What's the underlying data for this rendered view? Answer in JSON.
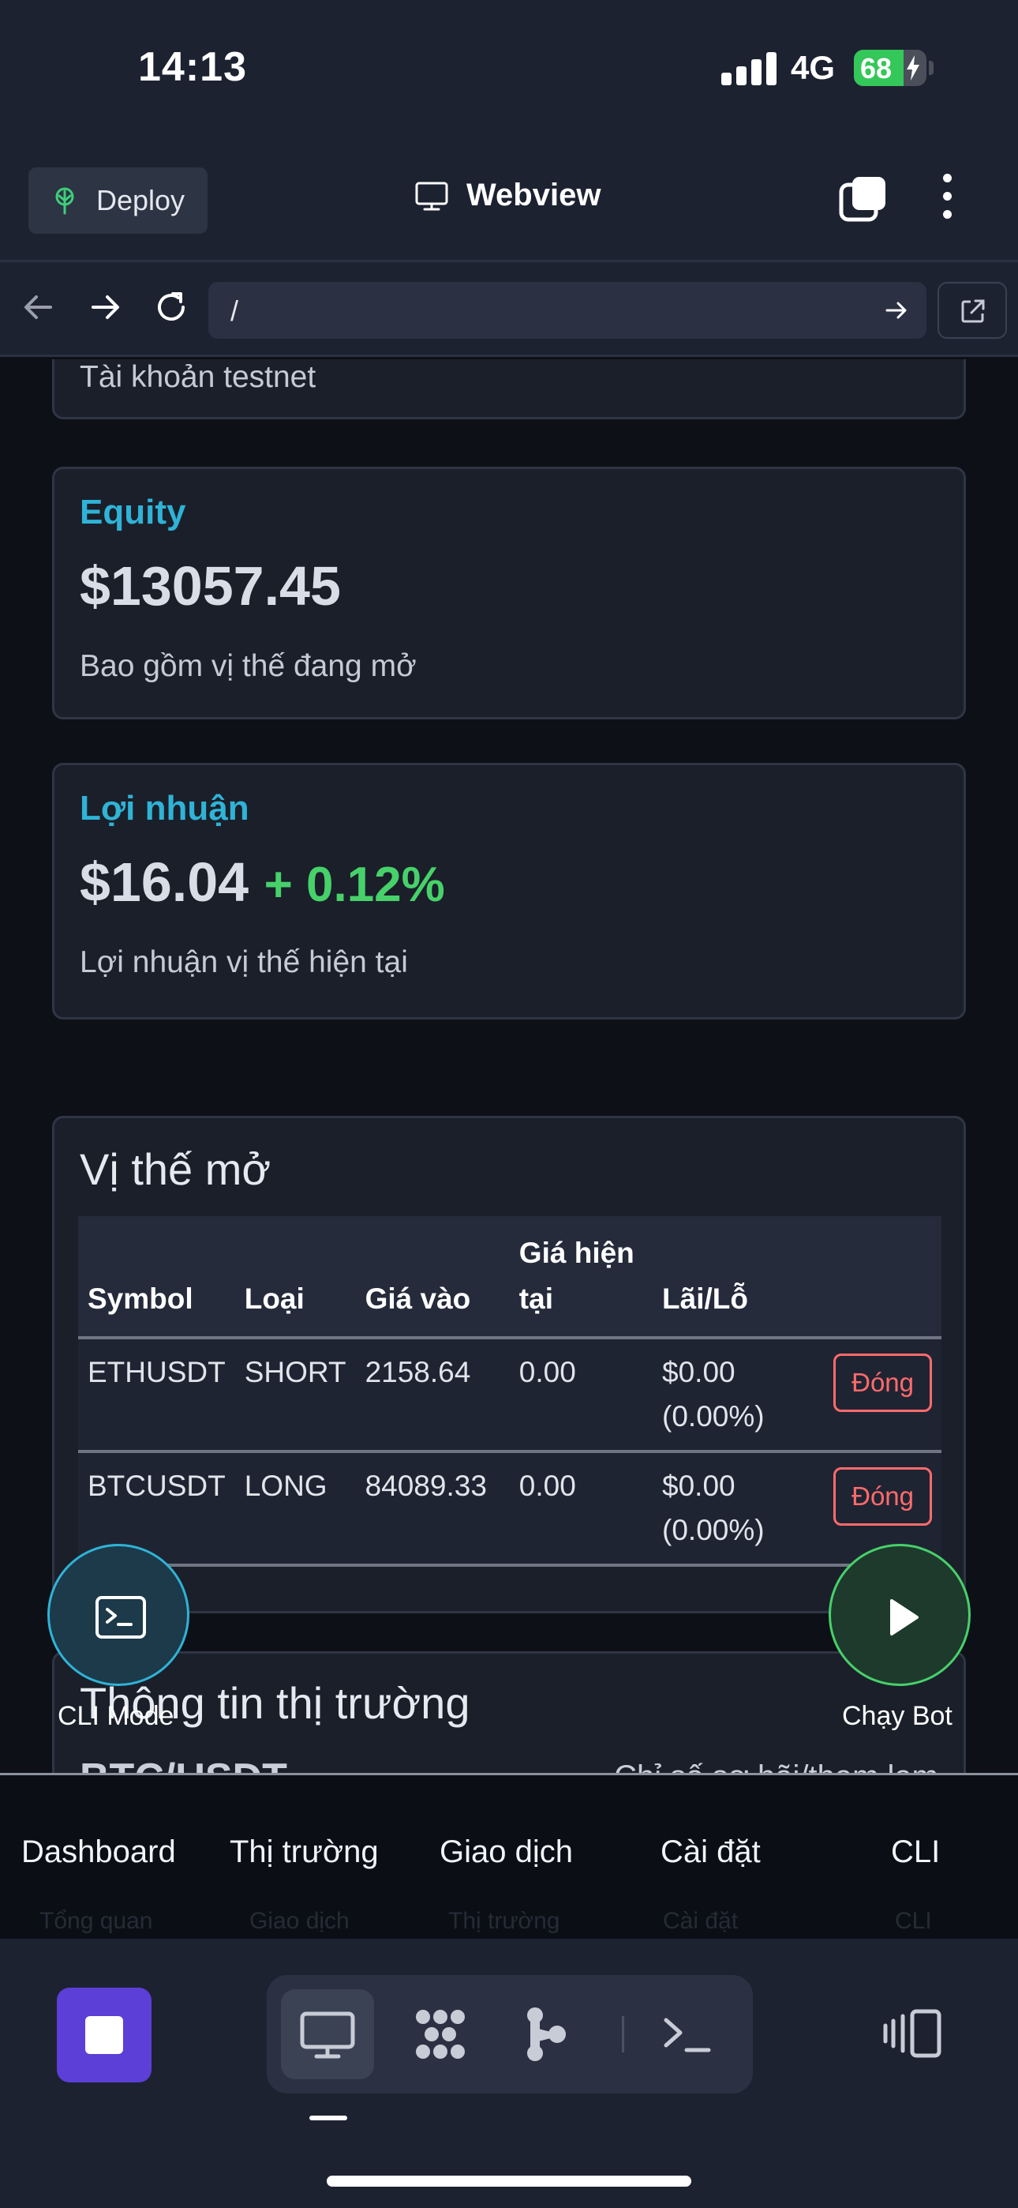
{
  "status_bar": {
    "time": "14:13",
    "network": "4G",
    "battery": "68",
    "battery_level": 0.68
  },
  "header": {
    "deploy_label": "Deploy",
    "title": "Webview"
  },
  "url_bar": {
    "url": "/"
  },
  "cards": {
    "account": {
      "subtitle": "Tài khoản testnet"
    },
    "equity": {
      "label": "Equity",
      "value": "$13057.45",
      "subtitle": "Bao gồm vị thế đang mở"
    },
    "profit": {
      "label": "Lợi nhuận",
      "value": "$16.04",
      "percent": "+ 0.12%",
      "subtitle": "Lợi nhuận vị thế hiện tại"
    }
  },
  "positions": {
    "title": "Vị thế mở",
    "columns": [
      "Symbol",
      "Loại",
      "Giá vào",
      "Giá hiện tại",
      "Lãi/Lỗ"
    ],
    "rows": [
      {
        "symbol": "ETHUSDT",
        "side": "SHORT",
        "entry": "2158.64",
        "current": "0.00",
        "pnl": "$0.00",
        "pnl_pct": "(0.00%)",
        "action": "Đóng"
      },
      {
        "symbol": "BTCUSDT",
        "side": "LONG",
        "entry": "84089.33",
        "current": "0.00",
        "pnl": "$0.00",
        "pnl_pct": "(0.00%)",
        "action": "Đóng"
      }
    ]
  },
  "market": {
    "title": "Thông tin thị trường",
    "pair": "BTC/USDT",
    "fear_greed_label": "Chỉ số sợ hãi/tham lam"
  },
  "fab": {
    "cli_label": "CLI Mode",
    "bot_label": "Chạy Bot"
  },
  "app_nav": {
    "items": [
      "Dashboard",
      "Thị trường",
      "Giao dịch",
      "Cài đặt",
      "CLI"
    ],
    "ghost_items": [
      "Tổng quan",
      "Giao dịch",
      "Thị trường",
      "Cài đặt",
      "CLI"
    ]
  },
  "toolbar": {
    "icons": [
      "stop-icon",
      "monitor-icon",
      "grid-icon",
      "branch-icon",
      "terminal-icon",
      "devices-icon"
    ]
  },
  "colors": {
    "accent_cyan": "#2fb3d6",
    "positive": "#47d16a",
    "negative": "#ff6b6b",
    "stop_purple": "#5b3fd6"
  }
}
